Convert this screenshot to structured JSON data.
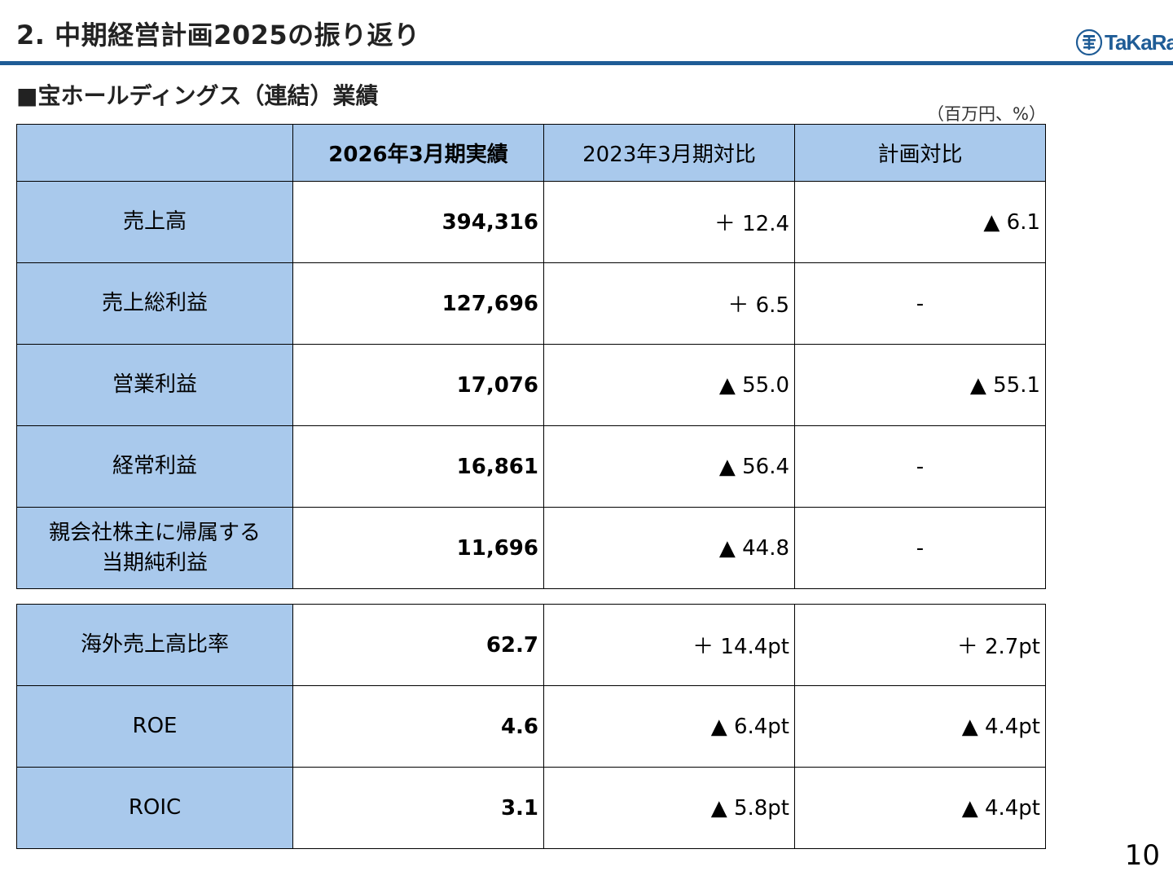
{
  "header": {
    "title": "2. 中期経営計画2025の振り返り",
    "logo_text": "TaKaRa"
  },
  "section_title": "■宝ホールディングス（連結）業績",
  "unit_note": "（百万円、%）",
  "table": {
    "columns": [
      "",
      "2026年3月期実績",
      "2023年3月期対比",
      "計画対比"
    ],
    "rows": [
      {
        "label": "売上高",
        "actual": "394,316",
        "vs_2023": "＋ 12.4",
        "vs_plan": "▲ 6.1"
      },
      {
        "label": "売上総利益",
        "actual": "127,696",
        "vs_2023": "＋ 6.5",
        "vs_plan": "-"
      },
      {
        "label": "営業利益",
        "actual": "17,076",
        "vs_2023": "▲ 55.0",
        "vs_plan": "▲ 55.1"
      },
      {
        "label": "経常利益",
        "actual": "16,861",
        "vs_2023": "▲ 56.4",
        "vs_plan": "-"
      },
      {
        "label_line1": "親会社株主に帰属する",
        "label_line2": "当期純利益",
        "actual": "11,696",
        "vs_2023": "▲ 44.8",
        "vs_plan": "-"
      }
    ]
  },
  "ratio_table": {
    "rows": [
      {
        "label": "海外売上高比率",
        "actual": "62.7",
        "vs_2023": "＋ 14.4pt",
        "vs_plan": "＋ 2.7pt"
      },
      {
        "label": "ROE",
        "actual": "4.6",
        "vs_2023": "▲ 6.4pt",
        "vs_plan": "▲ 4.4pt"
      },
      {
        "label": "ROIC",
        "actual": "3.1",
        "vs_2023": "▲ 5.8pt",
        "vs_plan": "▲ 4.4pt"
      }
    ]
  },
  "page_number": "10",
  "colors": {
    "accent": "#1f5c96",
    "header_fill": "#a9c9ec"
  }
}
